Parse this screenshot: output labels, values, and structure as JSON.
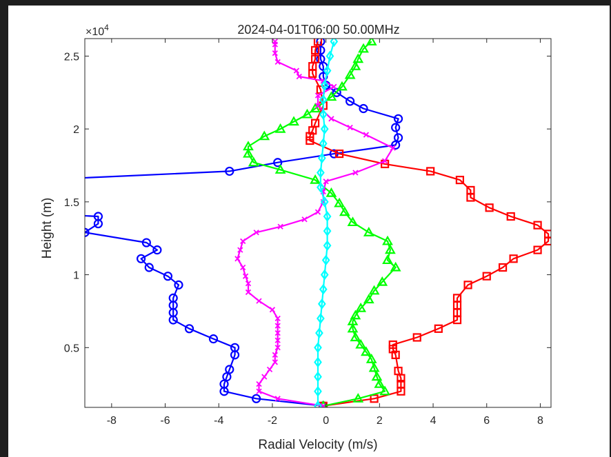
{
  "chart_data": {
    "type": "line",
    "title": "2024-04-01T06:00 50.00MHz",
    "xlabel": "Radial Velocity (m/s)",
    "ylabel": "Height (m)",
    "y_exponent_label": "×10",
    "y_exponent_power": "4",
    "xlim": [
      -9,
      8.4
    ],
    "ylim": [
      900,
      26200
    ],
    "x_ticks": [
      -8,
      -6,
      -4,
      -2,
      0,
      2,
      4,
      6,
      8
    ],
    "x_tick_labels": [
      "-8",
      "-6",
      "-4",
      "-2",
      "0",
      "2",
      "4",
      "6",
      "8"
    ],
    "y_ticks": [
      5000,
      10000,
      15000,
      20000,
      25000
    ],
    "y_tick_labels": [
      "0.5",
      "1",
      "1.5",
      "2",
      "2.5"
    ],
    "grid": false,
    "legend": "none",
    "series": [
      {
        "color": "#0000ff",
        "marker": "circle",
        "points": [
          [
            -0.1,
            1000
          ],
          [
            -2.6,
            1500
          ],
          [
            -3.8,
            2000
          ],
          [
            -3.8,
            2500
          ],
          [
            -3.7,
            3000
          ],
          [
            -3.6,
            3500
          ],
          [
            -3.4,
            4500
          ],
          [
            -3.4,
            5000
          ],
          [
            -4.2,
            5600
          ],
          [
            -5.1,
            6300
          ],
          [
            -5.7,
            6900
          ],
          [
            -5.7,
            7400
          ],
          [
            -5.7,
            7900
          ],
          [
            -5.7,
            8400
          ],
          [
            -5.5,
            9300
          ],
          [
            -5.9,
            9900
          ],
          [
            -6.6,
            10500
          ],
          [
            -6.9,
            11100
          ],
          [
            -6.3,
            11700
          ],
          [
            -6.7,
            12200
          ],
          [
            -9.0,
            12900
          ],
          [
            -8.5,
            13500
          ],
          [
            -8.5,
            14000
          ],
          [
            -9.6,
            14100
          ],
          [
            -9.6,
            16600
          ],
          [
            -3.6,
            17100
          ],
          [
            -1.8,
            17700
          ],
          [
            0.3,
            18300
          ],
          [
            2.6,
            18900
          ],
          [
            2.7,
            19400
          ],
          [
            2.6,
            20100
          ],
          [
            2.7,
            20700
          ],
          [
            1.4,
            21400
          ],
          [
            0.9,
            21900
          ],
          [
            0.4,
            22500
          ],
          [
            0.0,
            23000
          ],
          [
            -0.1,
            23600
          ],
          [
            -0.1,
            24300
          ],
          [
            -0.2,
            24800
          ],
          [
            -0.2,
            25400
          ],
          [
            -0.2,
            26000
          ]
        ]
      },
      {
        "color": "#ff0000",
        "marker": "square",
        "points": [
          [
            -0.1,
            1000
          ],
          [
            1.8,
            1500
          ],
          [
            2.8,
            2000
          ],
          [
            2.8,
            2500
          ],
          [
            2.8,
            2900
          ],
          [
            2.7,
            3400
          ],
          [
            2.6,
            4500
          ],
          [
            2.5,
            4900
          ],
          [
            2.5,
            5200
          ],
          [
            3.4,
            5700
          ],
          [
            4.2,
            6300
          ],
          [
            4.9,
            6900
          ],
          [
            4.9,
            7400
          ],
          [
            4.9,
            7900
          ],
          [
            4.9,
            8400
          ],
          [
            5.3,
            9300
          ],
          [
            6.0,
            9900
          ],
          [
            6.6,
            10500
          ],
          [
            7.0,
            11100
          ],
          [
            7.9,
            11700
          ],
          [
            8.3,
            12300
          ],
          [
            8.3,
            12800
          ],
          [
            7.9,
            13400
          ],
          [
            6.9,
            14000
          ],
          [
            6.1,
            14600
          ],
          [
            5.4,
            15300
          ],
          [
            5.4,
            15800
          ],
          [
            5.0,
            16500
          ],
          [
            3.9,
            17100
          ],
          [
            2.2,
            17600
          ],
          [
            0.5,
            18300
          ],
          [
            -0.6,
            19200
          ],
          [
            -0.6,
            19500
          ],
          [
            -0.5,
            19900
          ],
          [
            -0.4,
            20400
          ],
          [
            -0.1,
            21600
          ],
          [
            -0.2,
            22700
          ],
          [
            -0.5,
            23800
          ],
          [
            -0.5,
            24300
          ],
          [
            -0.4,
            24800
          ],
          [
            -0.4,
            25400
          ],
          [
            -0.3,
            26000
          ]
        ]
      },
      {
        "color": "#00ff00",
        "marker": "triangle",
        "points": [
          [
            -0.1,
            1000
          ],
          [
            1.2,
            1500
          ],
          [
            2.2,
            2000
          ],
          [
            2.0,
            2500
          ],
          [
            1.9,
            3000
          ],
          [
            1.8,
            3600
          ],
          [
            1.7,
            4200
          ],
          [
            1.5,
            4700
          ],
          [
            1.3,
            5200
          ],
          [
            1.1,
            5700
          ],
          [
            1.0,
            6300
          ],
          [
            1.0,
            6800
          ],
          [
            1.1,
            7200
          ],
          [
            1.3,
            7700
          ],
          [
            1.6,
            8300
          ],
          [
            1.8,
            8900
          ],
          [
            2.1,
            9500
          ],
          [
            2.6,
            10500
          ],
          [
            2.3,
            11000
          ],
          [
            2.4,
            11700
          ],
          [
            2.3,
            12300
          ],
          [
            1.6,
            12900
          ],
          [
            1.0,
            13600
          ],
          [
            0.7,
            14300
          ],
          [
            0.5,
            14900
          ],
          [
            0.2,
            15600
          ],
          [
            -0.4,
            16500
          ],
          [
            -1.7,
            17200
          ],
          [
            -2.7,
            17700
          ],
          [
            -2.9,
            18300
          ],
          [
            -2.9,
            18800
          ],
          [
            -2.3,
            19500
          ],
          [
            -1.7,
            20000
          ],
          [
            -1.2,
            20500
          ],
          [
            -0.7,
            21000
          ],
          [
            -0.4,
            21400
          ],
          [
            0.2,
            22200
          ],
          [
            0.6,
            22900
          ],
          [
            0.9,
            23700
          ],
          [
            1.1,
            24300
          ],
          [
            1.2,
            24800
          ],
          [
            1.4,
            25500
          ],
          [
            1.7,
            26000
          ]
        ]
      },
      {
        "color": "#ff00ff",
        "marker": "x",
        "points": [
          [
            -0.1,
            1000
          ],
          [
            -1.8,
            1500
          ],
          [
            -2.5,
            2000
          ],
          [
            -2.5,
            2500
          ],
          [
            -2.3,
            3000
          ],
          [
            -2.1,
            3500
          ],
          [
            -1.9,
            4000
          ],
          [
            -1.9,
            4500
          ],
          [
            -1.8,
            5000
          ],
          [
            -1.8,
            5500
          ],
          [
            -1.8,
            6000
          ],
          [
            -1.8,
            6500
          ],
          [
            -1.8,
            7000
          ],
          [
            -2.0,
            7600
          ],
          [
            -2.5,
            8200
          ],
          [
            -2.9,
            8800
          ],
          [
            -2.9,
            9400
          ],
          [
            -3.0,
            9900
          ],
          [
            -3.1,
            10500
          ],
          [
            -3.3,
            11100
          ],
          [
            -3.2,
            11700
          ],
          [
            -3.1,
            12300
          ],
          [
            -2.6,
            12900
          ],
          [
            -1.7,
            13300
          ],
          [
            -0.8,
            13800
          ],
          [
            -0.3,
            14300
          ],
          [
            -0.1,
            15000
          ],
          [
            -0.1,
            15700
          ],
          [
            0.0,
            16400
          ],
          [
            1.1,
            17000
          ],
          [
            2.2,
            17800
          ],
          [
            2.5,
            18700
          ],
          [
            1.5,
            19600
          ],
          [
            0.9,
            20100
          ],
          [
            0.2,
            20700
          ],
          [
            -0.3,
            21600
          ],
          [
            -0.3,
            22300
          ],
          [
            0.3,
            22900
          ],
          [
            -0.1,
            23300
          ],
          [
            -1.0,
            23600
          ],
          [
            -1.1,
            24000
          ],
          [
            -1.8,
            24600
          ],
          [
            -1.9,
            25200
          ],
          [
            -1.9,
            25800
          ],
          [
            -1.9,
            26000
          ]
        ]
      },
      {
        "color": "#00ffff",
        "marker": "diamond",
        "points": [
          [
            -0.3,
            1000
          ],
          [
            -0.3,
            2000
          ],
          [
            -0.3,
            3000
          ],
          [
            -0.3,
            4000
          ],
          [
            -0.3,
            5000
          ],
          [
            -0.25,
            6000
          ],
          [
            -0.2,
            7000
          ],
          [
            -0.15,
            8000
          ],
          [
            -0.1,
            9000
          ],
          [
            -0.05,
            10000
          ],
          [
            0.0,
            11000
          ],
          [
            0.05,
            12000
          ],
          [
            0.05,
            13000
          ],
          [
            0.05,
            14000
          ],
          [
            -0.05,
            15000
          ],
          [
            -0.2,
            16000
          ],
          [
            -0.2,
            17000
          ],
          [
            -0.15,
            18000
          ],
          [
            -0.1,
            19000
          ],
          [
            -0.05,
            20000
          ],
          [
            -0.1,
            21000
          ],
          [
            -0.1,
            22000
          ],
          [
            -0.05,
            23000
          ],
          [
            0.05,
            24000
          ],
          [
            0.15,
            25000
          ],
          [
            0.3,
            26000
          ]
        ]
      }
    ]
  }
}
